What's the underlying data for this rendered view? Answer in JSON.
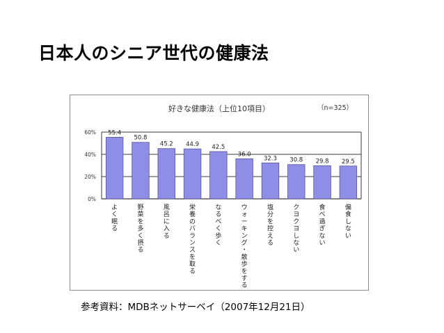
{
  "slide": {
    "title": "日本人のシニア世代の健康法",
    "source_note": "参考資料：MDBネットサーベイ（2007年12月21日）"
  },
  "chart_data": {
    "type": "bar",
    "title": "好きな健康法（上位10項目）",
    "note": "（n=325）",
    "categories": [
      "よく眠る",
      "野菜を多く摂る",
      "風呂に入る",
      "栄養のバランスを取る",
      "なるべく歩く",
      "ウォーキング・散歩をする",
      "塩分を控える",
      "クヨクヨしない",
      "食べ過ぎない",
      "偏食しない"
    ],
    "values": [
      55.4,
      50.8,
      45.2,
      44.9,
      42.5,
      36.0,
      32.3,
      30.8,
      29.8,
      29.5
    ],
    "value_labels": [
      "55.4",
      "50.8",
      "45.2",
      "44.9",
      "42.5",
      "36.0",
      "32.3",
      "30.8",
      "29.8",
      "29.5"
    ],
    "y_ticks": [
      0,
      20,
      40,
      60
    ],
    "y_tick_labels": [
      "0%",
      "20%",
      "40%",
      "60%"
    ],
    "ylim": [
      0,
      60
    ],
    "bar_color": "#8e8ee6",
    "bar_edge_color": "#55559a",
    "grid": true,
    "legend": false
  }
}
